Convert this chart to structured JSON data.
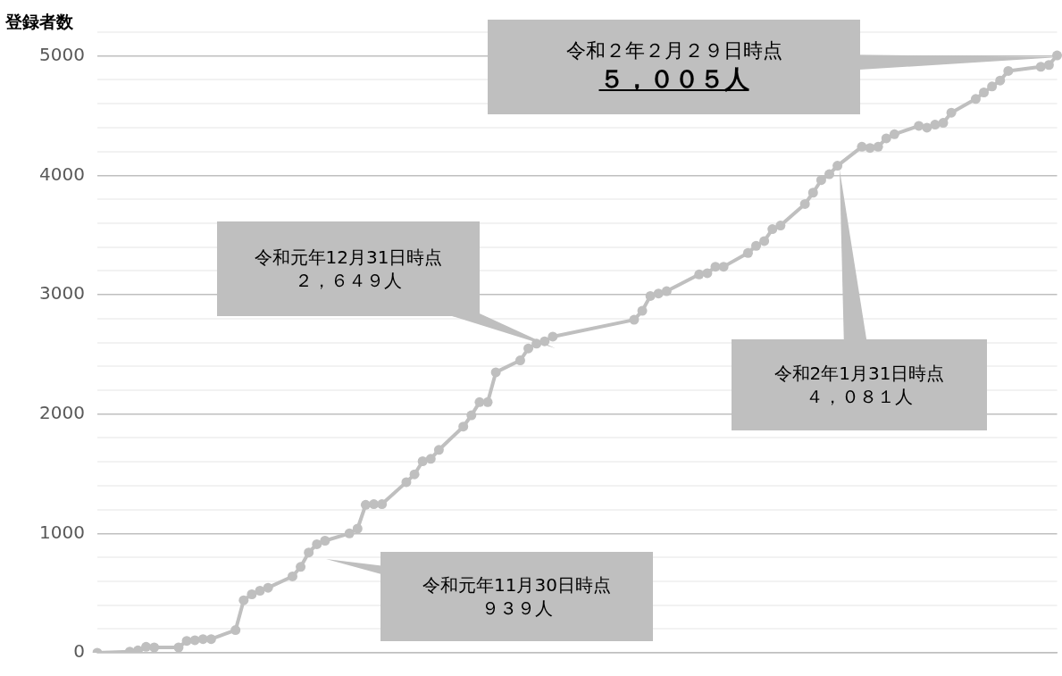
{
  "chart_data": {
    "type": "line",
    "ylabel": "登録者数",
    "categories": [
      null,
      null,
      null,
      null,
      null,
      null,
      null,
      null,
      null,
      null,
      null,
      null,
      null,
      null,
      null,
      null,
      null,
      null,
      null,
      null,
      null,
      null,
      null,
      null,
      null,
      null,
      null,
      null,
      null,
      null,
      null,
      null,
      null,
      null,
      null,
      null,
      null,
      null,
      null,
      null,
      null,
      null,
      null,
      null,
      null,
      null,
      null,
      null,
      null,
      null,
      null,
      null,
      null,
      null,
      null,
      null,
      null,
      null,
      null,
      null,
      null,
      null,
      null,
      null,
      null,
      null,
      null,
      null,
      null,
      null,
      null,
      null,
      null,
      null,
      null,
      null,
      null,
      null,
      null,
      null,
      null,
      null,
      null,
      null,
      null,
      null,
      null,
      null,
      null,
      null,
      null,
      null,
      null,
      null,
      null,
      null,
      null,
      null,
      null,
      null,
      null,
      null,
      null,
      null,
      null,
      null,
      null,
      null,
      null,
      null,
      null,
      null,
      null,
      null,
      null,
      null,
      null,
      null,
      null
    ],
    "series": [
      {
        "color": "#bfbfbf",
        "values": [
          0,
          null,
          null,
          null,
          10,
          20,
          50,
          45,
          null,
          null,
          45,
          100,
          105,
          115,
          115,
          null,
          null,
          190,
          440,
          490,
          520,
          545,
          null,
          null,
          640,
          720,
          840,
          910,
          939,
          null,
          null,
          1000,
          1040,
          1240,
          1245,
          1245,
          null,
          null,
          1430,
          1495,
          1605,
          1625,
          1700,
          null,
          null,
          1895,
          1990,
          2100,
          2100,
          2350,
          null,
          null,
          2450,
          2550,
          2590,
          2610,
          2649,
          null,
          null,
          null,
          null,
          null,
          null,
          null,
          null,
          null,
          2790,
          2865,
          2990,
          3010,
          3030,
          null,
          null,
          null,
          3170,
          3180,
          3235,
          3235,
          null,
          null,
          3350,
          3410,
          3450,
          3550,
          3580,
          null,
          null,
          3760,
          3855,
          3960,
          4010,
          4081,
          null,
          null,
          4240,
          4230,
          4240,
          4310,
          4345,
          null,
          null,
          4415,
          4400,
          4425,
          4440,
          4525,
          null,
          null,
          4640,
          4695,
          4745,
          4795,
          4875,
          null,
          null,
          null,
          4910,
          4925,
          5005
        ]
      }
    ],
    "ylim": [
      0,
      5200
    ],
    "yticks": [
      0,
      {
        "value": 200,
        "label": null
      },
      {
        "value": 400,
        "label": null
      },
      {
        "value": 600,
        "label": null
      },
      {
        "value": 800,
        "label": null
      },
      1000,
      {
        "value": 1200,
        "label": null
      },
      {
        "value": 1400,
        "label": null
      },
      {
        "value": 1600,
        "label": null
      },
      {
        "value": 1800,
        "label": null
      },
      2000,
      {
        "value": 2200,
        "label": null
      },
      {
        "value": 2400,
        "label": null
      },
      {
        "value": 2600,
        "label": null
      },
      {
        "value": 2800,
        "label": null
      },
      3000,
      {
        "value": 3200,
        "label": null
      },
      {
        "value": 3400,
        "label": null
      },
      {
        "value": 3600,
        "label": null
      },
      {
        "value": 3800,
        "label": null
      },
      4000,
      {
        "value": 4200,
        "label": null
      },
      {
        "value": 4400,
        "label": null
      },
      {
        "value": 4600,
        "label": null
      },
      {
        "value": 4800,
        "label": null
      },
      5000,
      {
        "value": 5200,
        "label": null
      }
    ],
    "grid": "y",
    "marker": "circle",
    "line_style": "solid",
    "legend": false,
    "tick_labels": "y",
    "annotations": [
      "令和元年11月30日時点",
      "９３９人",
      "令和元年12月31日時点",
      "２，６４９人",
      "令和2年1月31日時点",
      "４，０８１人",
      "令和２年２月２９日時点",
      "５，００５人"
    ]
  }
}
